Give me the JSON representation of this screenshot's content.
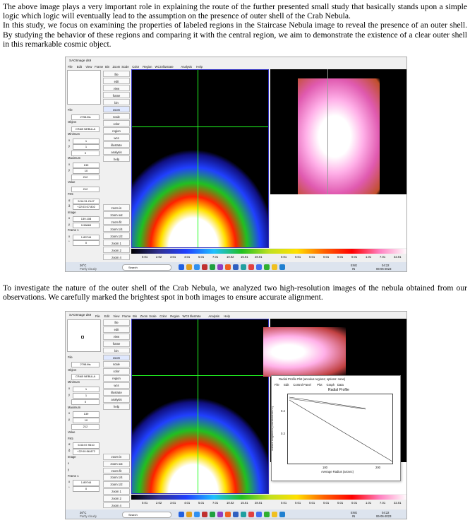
{
  "paragraphs": [
    "The above image plays a very important role in explaining the route of the further presented small study that basically stands upon a simple logic which logic will eventually lead to the assumption on the presence of outer shell of the Crab Nebula.",
    "In this study, we focus on examining the properties of labeled regions in the Staircase Nebula image to reveal the presence of an outer shell. By studying the behavior of these regions and comparing it with the central region, we aim to demonstrate the existence of a clear outer shell in this remarkable cosmic object.",
    "To investigate the nature of the outer shell of the Crab Nebula, we analyzed two high-resolution images of the nebula obtained from our observations. We carefully marked the brightest spot in both images to ensure accurate alignment."
  ],
  "screenshots": [
    {
      "window_title": "SAOImage ds9",
      "menu": [
        "File",
        "Edit",
        "View",
        "Frame",
        "Bin",
        "Zoom",
        "Scale",
        "Color",
        "Region",
        "WCS",
        "Illustrate",
        "Analysis",
        "Help"
      ],
      "buttons": [
        "file",
        "edit",
        "view",
        "frame",
        "bin",
        "zoom",
        "scale",
        "color",
        "region",
        "wcs",
        "illustrate",
        "analysis",
        "help"
      ],
      "zoom_buttons": [
        "zoom in",
        "zoom out",
        "zoom fit",
        "zoom 1/4",
        "zoom 1/2",
        "zoom 1",
        "zoom 2",
        "zoom 4"
      ],
      "info": [
        [
          "File"
        ],
        [
          "2798.fits"
        ],
        [
          "Object"
        ],
        [
          "CRAB NEBULA"
        ],
        [
          "Minimum"
        ],
        [
          "x",
          "1"
        ],
        [
          "y",
          "1"
        ],
        [
          "0"
        ],
        [
          "Maximum"
        ],
        [
          "x",
          "139"
        ],
        [
          "y",
          "10"
        ],
        [
          "212"
        ],
        [
          "Value"
        ],
        [
          "212"
        ],
        [
          "FK5"
        ],
        [
          "α",
          "5:34:31.2147"
        ],
        [
          "δ",
          "+22:03:07.802"
        ],
        [
          "Image"
        ],
        [
          "x",
          "139.108"
        ],
        [
          "y",
          "9.98669"
        ],
        [
          "Frame 1"
        ],
        [
          "x",
          "1.89744"
        ],
        [
          "°",
          "0"
        ]
      ],
      "colorbar_left": [
        "0.01",
        "2.02",
        "3.01",
        "4.01",
        "5.01",
        "7.01",
        "10.02",
        "15.01",
        "28.01"
      ],
      "colorbar_right": [
        "0.01",
        "0.01",
        "0.01",
        "0.01",
        "0.01",
        "0.01",
        "1.01",
        "7.01",
        "32.01"
      ],
      "taskbar": {
        "temp": "26°C",
        "weather": "Partly cloudy",
        "search": "Search",
        "lang": "ENG",
        "region": "IN",
        "time": "04:22",
        "date": "06-06-2023"
      }
    },
    {
      "window_title": "SAOImage ds9",
      "menu": [
        "File",
        "Edit",
        "View",
        "Frame",
        "Bin",
        "Zoom",
        "Scale",
        "Color",
        "Region",
        "WCS",
        "Illustrate",
        "Analysis",
        "Help"
      ],
      "buttons": [
        "file",
        "edit",
        "view",
        "frame",
        "bin",
        "zoom",
        "scale",
        "color",
        "region",
        "wcs",
        "illustrate",
        "analysis",
        "help"
      ],
      "zoom_buttons": [
        "zoom in",
        "zoom out",
        "zoom fit",
        "zoom 1/4",
        "zoom 1/2",
        "zoom 1",
        "zoom 2",
        "zoom 4"
      ],
      "info": [
        [
          "File"
        ],
        [
          "2798.fits"
        ],
        [
          "Object"
        ],
        [
          "CRAB NEBULA"
        ],
        [
          "Minimum"
        ],
        [
          "x",
          "1"
        ],
        [
          "y",
          "1"
        ],
        [
          "0"
        ],
        [
          "Maximum"
        ],
        [
          "x",
          "139"
        ],
        [
          "y",
          "10"
        ],
        [
          "212"
        ],
        [
          "Value"
        ],
        [
          "FK5"
        ],
        [
          "α",
          "5:33:57.9510"
        ],
        [
          "δ",
          "+22:00:56.872"
        ],
        [
          "Image"
        ],
        [
          "x"
        ],
        [
          "y"
        ],
        [
          "Frame 1"
        ],
        [
          "x",
          "1.89744"
        ],
        [
          "°",
          "0"
        ]
      ],
      "colorbar_left": [
        "0.01",
        "2.02",
        "3.01",
        "4.01",
        "5.01",
        "7.01",
        "10.02",
        "15.01",
        "28.01"
      ],
      "colorbar_right": [
        "0.01",
        "0.01",
        "0.01",
        "0.01",
        "0.01",
        "0.01",
        "1.01",
        "7.01",
        "32.01"
      ],
      "taskbar": {
        "temp": "26°C",
        "weather": "Partly cloudy",
        "search": "Search",
        "lang": "ENG",
        "region": "IN",
        "time": "04:22",
        "date": "06-06-2023"
      },
      "dialog": {
        "title": "Radial Profile Plot (annulus regions; options: none)",
        "menu": [
          "File",
          "Edit",
          "Control Panel",
          "Plot",
          "Graph",
          "Data"
        ],
        "plot_title": "Radial Profile",
        "y_label": "Surface Brightness (counts/arcsec^2)",
        "x_label": "Average Radius (arcsec)",
        "x_ticks": [
          "100",
          "200"
        ],
        "y_ticks": [
          "0.4",
          "0.3"
        ]
      }
    }
  ]
}
